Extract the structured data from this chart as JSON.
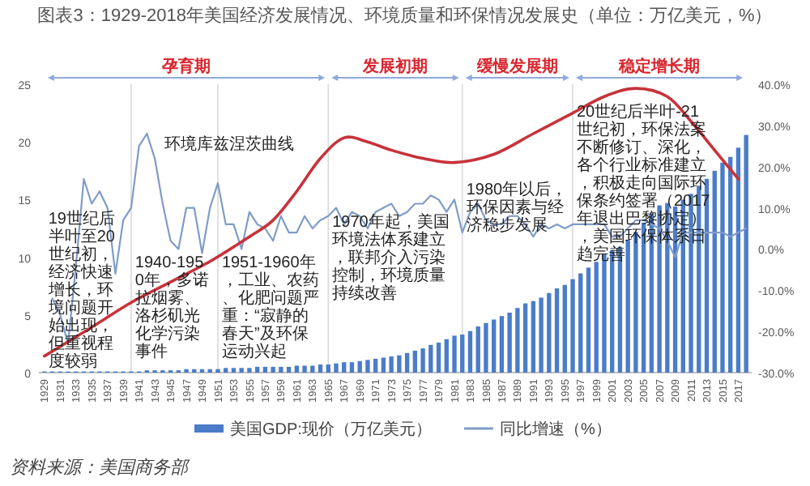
{
  "chart_data": {
    "type": "bar",
    "title": "图表3：1929-2018年美国经济发展情况、环境质量和环保情况发展史（单位：万亿美元，%）",
    "x": [
      1929,
      1930,
      1931,
      1932,
      1933,
      1934,
      1935,
      1936,
      1937,
      1938,
      1939,
      1940,
      1941,
      1942,
      1943,
      1944,
      1945,
      1946,
      1947,
      1948,
      1949,
      1950,
      1951,
      1952,
      1953,
      1954,
      1955,
      1956,
      1957,
      1958,
      1959,
      1960,
      1961,
      1962,
      1963,
      1964,
      1965,
      1966,
      1967,
      1968,
      1969,
      1970,
      1971,
      1972,
      1973,
      1974,
      1975,
      1976,
      1977,
      1978,
      1979,
      1980,
      1981,
      1982,
      1983,
      1984,
      1985,
      1986,
      1987,
      1988,
      1989,
      1990,
      1991,
      1992,
      1993,
      1994,
      1995,
      1996,
      1997,
      1998,
      1999,
      2000,
      2001,
      2002,
      2003,
      2004,
      2005,
      2006,
      2007,
      2008,
      2009,
      2010,
      2011,
      2012,
      2013,
      2014,
      2015,
      2016,
      2017,
      2018
    ],
    "xlim": [
      1928.3,
      2018.7
    ],
    "xticks": [
      1929,
      1931,
      1933,
      1935,
      1937,
      1939,
      1941,
      1943,
      1945,
      1947,
      1949,
      1951,
      1953,
      1955,
      1957,
      1959,
      1961,
      1963,
      1965,
      1967,
      1969,
      1971,
      1973,
      1975,
      1977,
      1979,
      1981,
      1983,
      1985,
      1987,
      1989,
      1991,
      1993,
      1995,
      1997,
      1999,
      2001,
      2003,
      2005,
      2007,
      2009,
      2011,
      2013,
      2015,
      2017
    ],
    "ylim": [
      0,
      25
    ],
    "yticks": [
      0,
      5,
      10,
      15,
      20,
      25
    ],
    "y2lim": [
      -30,
      40
    ],
    "y2ticks": [
      {
        "value": -30,
        "label": "-30.0%"
      },
      {
        "value": -20,
        "label": "-20.0%"
      },
      {
        "value": -10,
        "label": "-10.0%"
      },
      {
        "value": 0,
        "label": "0.0%"
      },
      {
        "value": 10,
        "label": "10.0%"
      },
      {
        "value": 20,
        "label": "20.0%"
      },
      {
        "value": 30,
        "label": "30.0%"
      },
      {
        "value": 40,
        "label": "40.0%"
      }
    ],
    "series": [
      {
        "name": "美国GDP:现价（万亿美元）",
        "color": "#4a7cc9",
        "values": [
          0.1,
          0.1,
          0.1,
          0.1,
          0.1,
          0.1,
          0.1,
          0.1,
          0.1,
          0.1,
          0.1,
          0.1,
          0.1,
          0.2,
          0.2,
          0.2,
          0.2,
          0.2,
          0.3,
          0.3,
          0.3,
          0.3,
          0.3,
          0.4,
          0.4,
          0.4,
          0.4,
          0.5,
          0.5,
          0.5,
          0.5,
          0.5,
          0.6,
          0.6,
          0.6,
          0.7,
          0.7,
          0.8,
          0.9,
          0.9,
          1.0,
          1.1,
          1.2,
          1.3,
          1.4,
          1.5,
          1.7,
          1.9,
          2.1,
          2.4,
          2.6,
          2.9,
          3.2,
          3.3,
          3.6,
          4.0,
          4.3,
          4.6,
          4.9,
          5.2,
          5.6,
          6.0,
          6.2,
          6.5,
          6.9,
          7.3,
          7.6,
          8.1,
          8.6,
          9.1,
          9.6,
          10.3,
          10.6,
          10.9,
          11.5,
          12.2,
          13.0,
          13.8,
          14.5,
          14.7,
          14.4,
          15.0,
          15.5,
          16.2,
          16.8,
          17.5,
          18.2,
          18.7,
          19.5,
          20.6
        ]
      },
      {
        "type": "line",
        "axis": "y2",
        "name": "同比增速（%）",
        "color": "#7f9cc8",
        "values": [
          null,
          -12,
          -16,
          -23,
          -4,
          17,
          11,
          14,
          10,
          -6,
          7,
          10,
          25,
          28,
          22,
          11,
          2,
          0,
          10,
          10,
          -1,
          10,
          16,
          6,
          6,
          0,
          9,
          6,
          5,
          2,
          8,
          4,
          4,
          8,
          5,
          7,
          8,
          10,
          6,
          9,
          8,
          5,
          9,
          10,
          11,
          8,
          9,
          11,
          11,
          13,
          12,
          9,
          12,
          4,
          9,
          11,
          7,
          6,
          6,
          8,
          8,
          6,
          3,
          6,
          5,
          6,
          5,
          6,
          6,
          6,
          6,
          6,
          3,
          3,
          5,
          7,
          7,
          6,
          5,
          2,
          -2,
          4,
          4,
          4,
          4,
          4,
          4,
          3,
          4,
          5
        ]
      },
      {
        "type": "line",
        "axis": "y2",
        "color": "#c8323a",
        "x": [
          1929,
          1935,
          1940,
          1945,
          1950,
          1955,
          1958,
          1961,
          1964,
          1967,
          1970,
          1973,
          1977,
          1981,
          1986,
          1991,
          1996,
          2000,
          2004,
          2008,
          2011,
          2014,
          2017
        ],
        "values": [
          -26,
          -19,
          -13,
          -8,
          -3,
          3,
          7,
          14,
          22,
          27,
          26,
          24,
          22,
          21,
          23,
          28,
          33,
          37,
          39,
          37,
          31,
          24,
          17
        ]
      }
    ],
    "ref_lines": [
      {
        "axis": "x",
        "value": 1940,
        "color": "#d9d9d9"
      },
      {
        "axis": "x",
        "value": 1951,
        "color": "#d9d9d9"
      },
      {
        "axis": "x",
        "value": 1965,
        "color": "#d9d9d9"
      },
      {
        "axis": "x",
        "value": 1982,
        "color": "#d9d9d9"
      },
      {
        "axis": "x",
        "value": 1996,
        "color": "#d9d9d9"
      }
    ],
    "annotations": [
      "环境库兹涅茨曲线",
      "19世纪后半叶至20世纪初，经济快速增长，环境问题开始出现，但重视程度较弱",
      "1940-1950年，多诺拉烟雾、洛杉矶光化学污染事件",
      "1951-1960年，工业、农药、化肥问题严重：“寂静的春天”及环保运动兴起",
      "1970年起，美国环境法体系建立，联邦介入污染控制，环境质量持续改善",
      "1980年以后，环保因素与经济稳步发展",
      "20世纪后半叶-21世纪初，环保法案不断修订、深化，各个行业标准建立，积极走向国际环保条约签署（2017年退出巴黎协定），美国环保体系日趋完善",
      "资料来源：美国商务部",
      "孕育期",
      "发展初期",
      "缓慢发展期",
      "稳定增长期"
    ],
    "legend": "bottom"
  }
}
